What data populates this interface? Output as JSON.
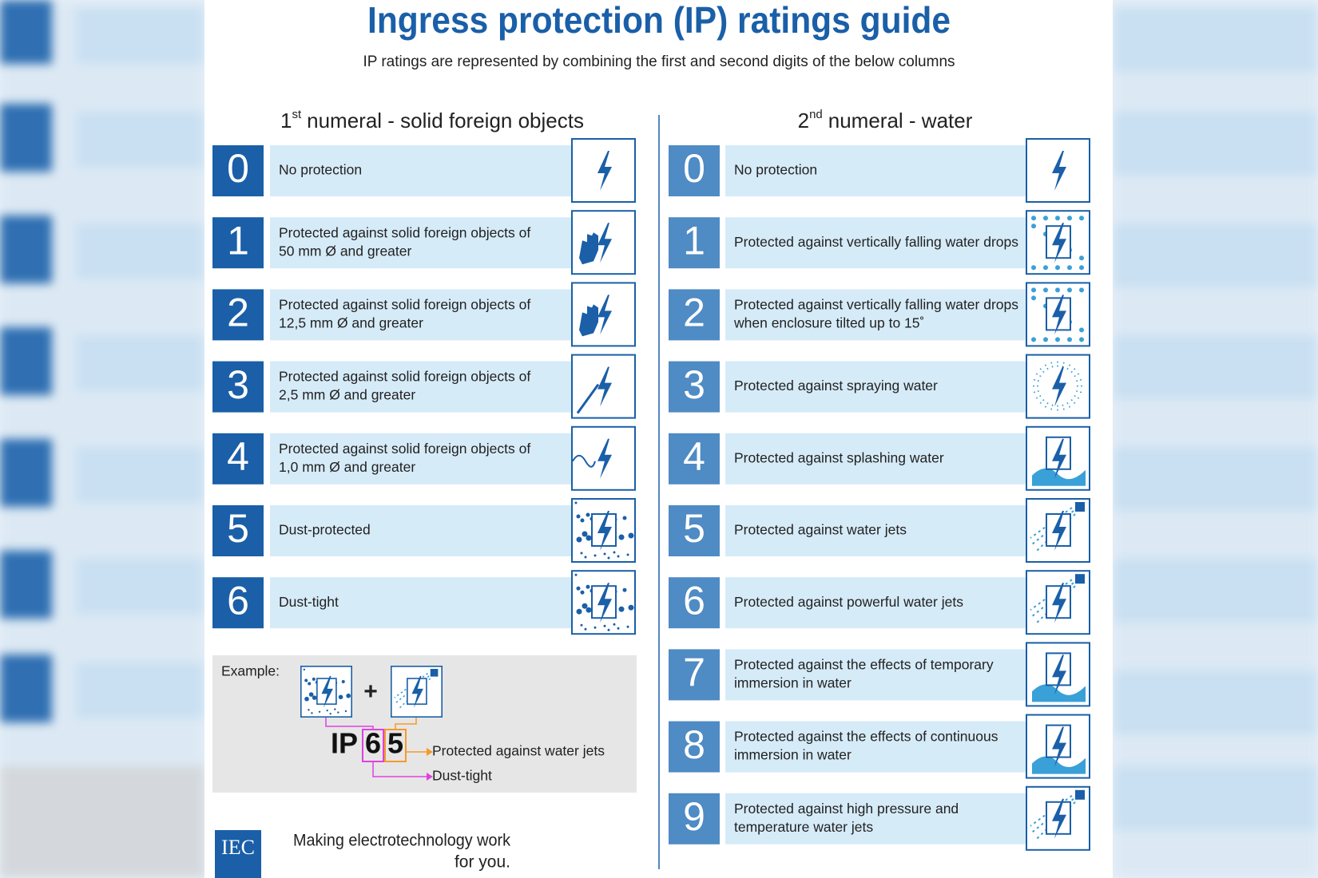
{
  "header": {
    "title": "Ingress protection (IP) ratings guide",
    "subtitle": "IP ratings are represented by combining the first and second digits of the below columns"
  },
  "left": {
    "heading": {
      "number": "1",
      "suffix": "st",
      "text": "numeral - solid foreign objects"
    },
    "rows": [
      {
        "digit": "0",
        "lines": [
          "No protection"
        ]
      },
      {
        "digit": "1",
        "lines": [
          "Protected against solid foreign objects of",
          "50 mm Ø and greater"
        ]
      },
      {
        "digit": "2",
        "lines": [
          "Protected against solid foreign objects of",
          "12,5 mm Ø and greater"
        ]
      },
      {
        "digit": "3",
        "lines": [
          "Protected against solid foreign objects of",
          "2,5 mm Ø and greater"
        ]
      },
      {
        "digit": "4",
        "lines": [
          "Protected against solid foreign objects of",
          "1,0 mm Ø and greater"
        ]
      },
      {
        "digit": "5",
        "lines": [
          "Dust-protected"
        ]
      },
      {
        "digit": "6",
        "lines": [
          "Dust-tight"
        ]
      }
    ]
  },
  "right": {
    "heading": {
      "number": "2",
      "suffix": "nd",
      "text": "numeral - water"
    },
    "rows": [
      {
        "digit": "0",
        "lines": [
          "No protection"
        ]
      },
      {
        "digit": "1",
        "lines": [
          "Protected against vertically falling water drops"
        ]
      },
      {
        "digit": "2",
        "lines": [
          "Protected against vertically falling water drops",
          "when enclosure tilted up to 15˚"
        ]
      },
      {
        "digit": "3",
        "lines": [
          "Protected against spraying water"
        ]
      },
      {
        "digit": "4",
        "lines": [
          "Protected against splashing water"
        ]
      },
      {
        "digit": "5",
        "lines": [
          "Protected against water jets"
        ]
      },
      {
        "digit": "6",
        "lines": [
          "Protected against powerful water jets"
        ]
      },
      {
        "digit": "7",
        "lines": [
          "Protected against the effects of temporary",
          "immersion in water"
        ]
      },
      {
        "digit": "8",
        "lines": [
          "Protected against the effects of continuous",
          "immersion in water"
        ]
      },
      {
        "digit": "9",
        "lines": [
          "Protected against high pressure and",
          "temperature water jets"
        ]
      }
    ]
  },
  "example": {
    "label": "Example:",
    "plus": "+",
    "prefix": "IP",
    "first_digit": "6",
    "second_digit": "5",
    "second_meaning": "Protected against water jets",
    "first_meaning": "Dust-tight"
  },
  "footer": {
    "logo": "IEC",
    "tagline": [
      "Making  electrotechnology work",
      "for you."
    ]
  }
}
